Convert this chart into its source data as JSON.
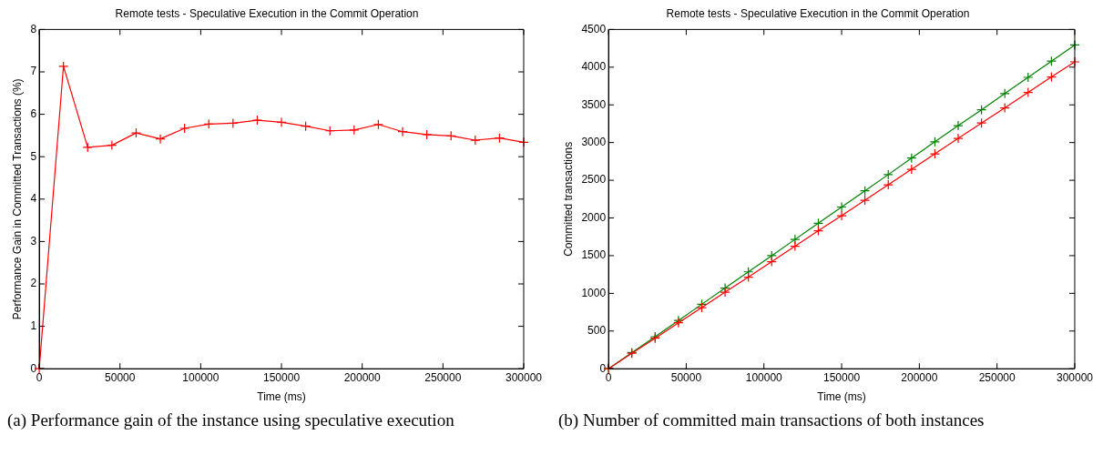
{
  "chart_data": [
    {
      "type": "line",
      "title": "Remote tests - Speculative Execution in the Commit Operation",
      "xlabel": "Time (ms)",
      "ylabel": "Performance Gain in Committed Transactions (%)",
      "x": [
        0,
        15000,
        30000,
        45000,
        60000,
        75000,
        90000,
        105000,
        120000,
        135000,
        150000,
        165000,
        180000,
        195000,
        210000,
        225000,
        240000,
        255000,
        270000,
        285000,
        300000
      ],
      "series": [
        {
          "color": "#ff0000",
          "values": [
            0,
            7.13,
            5.22,
            5.27,
            5.56,
            5.42,
            5.67,
            5.77,
            5.79,
            5.86,
            5.81,
            5.72,
            5.61,
            5.63,
            5.76,
            5.59,
            5.52,
            5.49,
            5.39,
            5.44,
            5.34
          ]
        }
      ],
      "xlim": [
        0,
        300000
      ],
      "xticks": [
        0,
        50000,
        100000,
        150000,
        200000,
        250000,
        300000
      ],
      "ylim": [
        0,
        8
      ],
      "yticks": [
        0,
        1,
        2,
        3,
        4,
        5,
        6,
        7,
        8
      ],
      "marker": "cross",
      "grid": false,
      "legend": false,
      "annotations": [
        "(a) Performance gain of the instance using speculative execution"
      ]
    },
    {
      "type": "line",
      "title": "Remote tests - Speculative Execution in the Commit Operation",
      "xlabel": "Time (ms)",
      "ylabel": "Committed transactions",
      "x": [
        0,
        15000,
        30000,
        45000,
        60000,
        75000,
        90000,
        105000,
        120000,
        135000,
        150000,
        165000,
        180000,
        195000,
        210000,
        225000,
        240000,
        255000,
        270000,
        285000,
        300000
      ],
      "series": [
        {
          "color": "#ff0000",
          "values": [
            0,
            205,
            405,
            610,
            810,
            1015,
            1215,
            1420,
            1625,
            1830,
            2030,
            2235,
            2440,
            2645,
            2850,
            3055,
            3260,
            3460,
            3665,
            3870,
            4070
          ]
        },
        {
          "color": "#008000",
          "values": [
            0,
            215,
            425,
            640,
            855,
            1070,
            1285,
            1500,
            1715,
            1930,
            2145,
            2360,
            2575,
            2795,
            3010,
            3225,
            3435,
            3650,
            3865,
            4080,
            4295
          ]
        }
      ],
      "xlim": [
        0,
        300000
      ],
      "xticks": [
        0,
        50000,
        100000,
        150000,
        200000,
        250000,
        300000
      ],
      "ylim": [
        0,
        4500
      ],
      "yticks": [
        0,
        500,
        1000,
        1500,
        2000,
        2500,
        3000,
        3500,
        4000,
        4500
      ],
      "marker": "cross",
      "grid": false,
      "legend": false,
      "annotations": [
        "(b) Number of committed main transactions of both instances"
      ]
    }
  ]
}
